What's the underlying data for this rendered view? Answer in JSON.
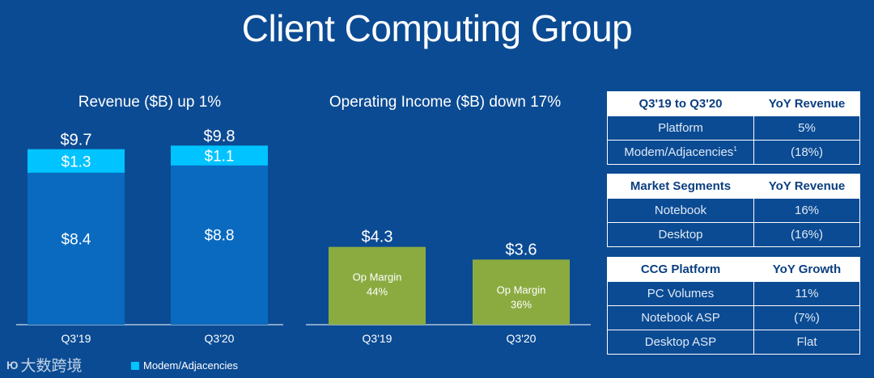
{
  "title": "Client Computing Group",
  "colors": {
    "background": "#0b4b93",
    "platform": "#0a6abf",
    "modem": "#00c3ff",
    "op_income": "#8bab41",
    "axis": "#ffffff"
  },
  "chart_data": [
    {
      "type": "bar",
      "stacked": true,
      "title": "Revenue ($B) up 1%",
      "categories": [
        "Q3'19",
        "Q3'20"
      ],
      "series": [
        {
          "name": "Platform",
          "values": [
            8.4,
            8.8
          ],
          "labels": [
            "$8.4",
            "$8.8"
          ]
        },
        {
          "name": "Modem/Adjacencies",
          "values": [
            1.3,
            1.1
          ],
          "labels": [
            "$1.3",
            "$1.1"
          ]
        }
      ],
      "totals": [
        "$9.7",
        "$9.8"
      ],
      "ylim": [
        0,
        12
      ],
      "legend": [
        "Modem/Adjacencies"
      ]
    },
    {
      "type": "bar",
      "title": "Operating Income ($B) down 17%",
      "categories": [
        "Q3'19",
        "Q3'20"
      ],
      "values": [
        4.3,
        3.6
      ],
      "value_labels": [
        "$4.3",
        "$3.6"
      ],
      "annotations": [
        {
          "line1": "Op Margin",
          "line2": "44%"
        },
        {
          "line1": "Op Margin",
          "line2": "36%"
        }
      ],
      "ylim": [
        0,
        12
      ]
    }
  ],
  "tables": [
    {
      "headers": [
        "Q3'19 to Q3'20",
        "YoY Revenue"
      ],
      "rows": [
        [
          "Platform",
          "5%"
        ],
        [
          "Modem/Adjacencies",
          "(18%)"
        ]
      ],
      "footnote_marker": "1"
    },
    {
      "headers": [
        "Market Segments",
        "YoY Revenue"
      ],
      "rows": [
        [
          "Notebook",
          "16%"
        ],
        [
          "Desktop",
          "(16%)"
        ]
      ]
    },
    {
      "headers": [
        "CCG Platform",
        "YoY Growth"
      ],
      "rows": [
        [
          "PC Volumes",
          "11%"
        ],
        [
          "Notebook ASP",
          "(7%)"
        ],
        [
          "Desktop ASP",
          "Flat"
        ]
      ]
    }
  ],
  "watermark": {
    "icon_text": "Ю",
    "text": "大数跨境"
  }
}
